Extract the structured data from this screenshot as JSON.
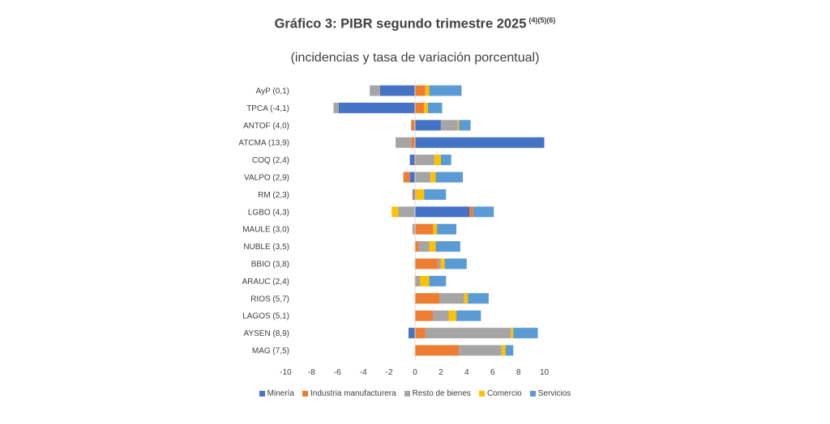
{
  "chart_data": {
    "type": "bar",
    "orientation": "horizontal",
    "stacked": true,
    "title": "Gráfico 3: PIBR segundo trimestre 2025",
    "title_sup": "(4)(5)(6)",
    "subtitle": "(incidencias y tasa de variación porcentual)",
    "categories": [
      "AyP (0,1)",
      "TPCA (-4,1)",
      "ANTOF (4,0)",
      "ATCMA (13,9)",
      "COQ (2,4)",
      "VALPO (2,9)",
      "RM (2,3)",
      "LGBO (4,3)",
      "MAULE (3,0)",
      "NUBLE (3,5)",
      "BBIO (3,8)",
      "ARAUC (2,4)",
      "RIOS (5,7)",
      "LAGOS (5,1)",
      "AYSEN (8,9)",
      "MAG (7,5)"
    ],
    "xlim": [
      -10,
      10
    ],
    "xticks": [
      -10,
      -8,
      -6,
      -4,
      -2,
      0,
      2,
      4,
      6,
      8,
      10
    ],
    "legend_position": "bottom",
    "series": [
      {
        "name": "Minería",
        "color": "#4472C4",
        "values": [
          -2.7,
          -5.9,
          2.0,
          10.0,
          -0.4,
          -0.4,
          -0.1,
          4.2,
          0.0,
          0.0,
          0.0,
          0.0,
          0.0,
          0.0,
          -0.5,
          0.0
        ]
      },
      {
        "name": "Industria manufacturera",
        "color": "#ED7D31",
        "values": [
          0.8,
          0.7,
          -0.3,
          -0.3,
          0.1,
          -0.5,
          -0.1,
          0.3,
          1.4,
          0.3,
          1.8,
          0.1,
          1.9,
          1.4,
          0.8,
          3.4
        ]
      },
      {
        "name": "Resto de bienes",
        "color": "#A5A5A5",
        "values": [
          -0.8,
          -0.4,
          1.3,
          -1.2,
          1.4,
          1.2,
          0.1,
          -1.3,
          -0.2,
          0.8,
          0.2,
          0.3,
          1.9,
          1.2,
          6.6,
          3.3
        ]
      },
      {
        "name": "Comercio",
        "color": "#FFC000",
        "values": [
          0.3,
          0.3,
          0.1,
          0.0,
          0.5,
          0.4,
          0.6,
          -0.5,
          0.3,
          0.5,
          0.3,
          0.7,
          0.3,
          0.6,
          0.2,
          0.3
        ]
      },
      {
        "name": "Servicios",
        "color": "#5B9BD5",
        "values": [
          2.5,
          1.1,
          0.9,
          0.0,
          0.8,
          2.1,
          1.7,
          1.6,
          1.5,
          1.9,
          1.7,
          1.3,
          1.6,
          1.9,
          1.9,
          0.6
        ]
      }
    ]
  }
}
